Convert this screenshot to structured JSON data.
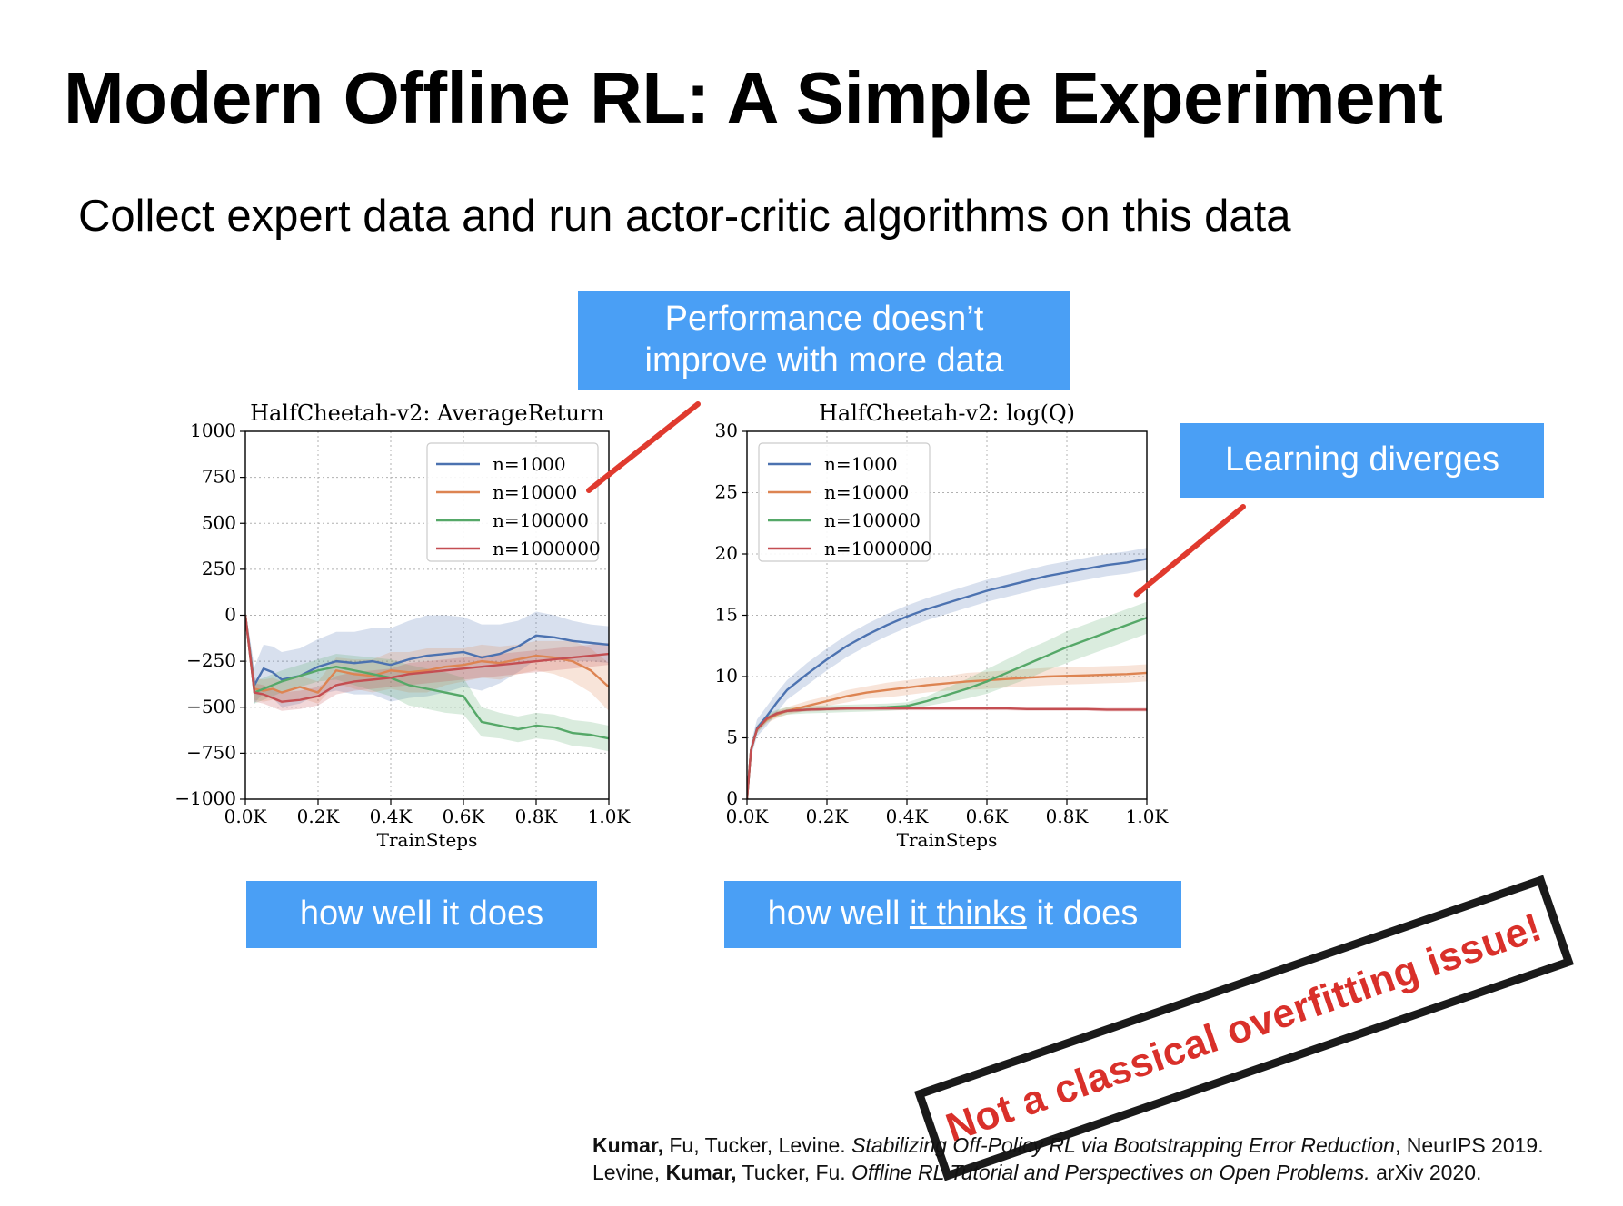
{
  "slide": {
    "title": "Modern Offline RL: A Simple Experiment",
    "subtitle": "Collect expert data and run actor-critic algorithms on this data",
    "callouts": {
      "performance": [
        "Performance doesn’t",
        "improve with more data"
      ],
      "diverges": "Learning diverges",
      "how_well": "how well it does",
      "thinks_pre": "how well ",
      "thinks_em": "it thinks",
      "thinks_post": " it does"
    },
    "stamp": "Not a classical overfitting issue!",
    "references": [
      {
        "bold": "Kumar,",
        "authors": " Fu, Tucker, Levine. ",
        "title": "Stabilizing Off-Policy RL via Bootstrapping Error Reduction",
        "venue": ", NeurIPS 2019."
      },
      {
        "pre": "Levine, ",
        "bold": "Kumar,",
        "authors": " Tucker, Fu. ",
        "title": "Offline RL Tutorial and Perspectives on Open Problems.",
        "venue": " arXiv 2020."
      }
    ],
    "colors": {
      "callout": "#4a9ff5",
      "annotation_arrow": "#e03a2e",
      "stamp_text": "#d9302a"
    }
  },
  "chart_data": [
    {
      "type": "line",
      "title": "HalfCheetah-v2: AverageReturn",
      "xlabel": "TrainSteps",
      "ylabel": "",
      "xlim": [
        0,
        1000
      ],
      "ylim": [
        -1000,
        1000
      ],
      "xticks": [
        0,
        200,
        400,
        600,
        800,
        1000
      ],
      "xtick_labels": [
        "0.0K",
        "0.2K",
        "0.4K",
        "0.6K",
        "0.8K",
        "1.0K"
      ],
      "yticks": [
        -1000,
        -750,
        -500,
        -250,
        0,
        250,
        500,
        750,
        1000
      ],
      "ytick_labels": [
        "−1000",
        "−750",
        "−500",
        "−250",
        "0",
        "250",
        "500",
        "750",
        "1000"
      ],
      "grid": true,
      "legend": "top-right",
      "x": [
        0,
        25,
        50,
        75,
        100,
        150,
        200,
        250,
        300,
        350,
        400,
        450,
        500,
        550,
        600,
        650,
        700,
        750,
        800,
        850,
        900,
        950,
        1000
      ],
      "series": [
        {
          "name": "n=1000",
          "color": "#4c72b0",
          "values": [
            0,
            -380,
            -290,
            -310,
            -350,
            -330,
            -280,
            -250,
            -260,
            -250,
            -270,
            -240,
            -220,
            -210,
            -200,
            -230,
            -210,
            -170,
            -110,
            -120,
            -140,
            -150,
            -160
          ],
          "band": [
            30,
            100,
            130,
            140,
            150,
            150,
            150,
            160,
            170,
            180,
            200,
            210,
            220,
            210,
            190,
            180,
            160,
            140,
            130,
            120,
            110,
            100,
            100
          ]
        },
        {
          "name": "n=10000",
          "color": "#dd8452",
          "values": [
            0,
            -400,
            -410,
            -400,
            -420,
            -390,
            -420,
            -300,
            -320,
            -330,
            -300,
            -310,
            -300,
            -280,
            -270,
            -250,
            -260,
            -240,
            -220,
            -230,
            -250,
            -300,
            -390
          ],
          "band": [
            30,
            60,
            60,
            60,
            60,
            60,
            60,
            70,
            80,
            90,
            100,
            110,
            120,
            100,
            90,
            90,
            90,
            80,
            80,
            90,
            110,
            120,
            130
          ]
        },
        {
          "name": "n=100000",
          "color": "#55a868",
          "values": [
            0,
            -420,
            -400,
            -380,
            -360,
            -330,
            -300,
            -280,
            -300,
            -320,
            -340,
            -380,
            -400,
            -420,
            -440,
            -580,
            -600,
            -620,
            -600,
            -610,
            -640,
            -650,
            -670
          ],
          "band": [
            30,
            60,
            60,
            60,
            60,
            60,
            60,
            70,
            80,
            90,
            100,
            110,
            110,
            110,
            100,
            80,
            70,
            70,
            70,
            70,
            70,
            70,
            70
          ]
        },
        {
          "name": "n=1000000",
          "color": "#c44e52",
          "values": [
            0,
            -420,
            -430,
            -450,
            -470,
            -460,
            -440,
            -380,
            -360,
            -350,
            -340,
            -320,
            -310,
            -300,
            -290,
            -280,
            -270,
            -260,
            -250,
            -240,
            -230,
            -220,
            -210
          ],
          "band": [
            30,
            50,
            50,
            50,
            50,
            50,
            50,
            50,
            50,
            50,
            50,
            60,
            60,
            60,
            60,
            60,
            60,
            60,
            60,
            60,
            60,
            60,
            60
          ]
        }
      ]
    },
    {
      "type": "line",
      "title": "HalfCheetah-v2: log(Q)",
      "xlabel": "TrainSteps",
      "ylabel": "",
      "xlim": [
        0,
        1000
      ],
      "ylim": [
        0,
        30
      ],
      "xticks": [
        0,
        200,
        400,
        600,
        800,
        1000
      ],
      "xtick_labels": [
        "0.0K",
        "0.2K",
        "0.4K",
        "0.6K",
        "0.8K",
        "1.0K"
      ],
      "yticks": [
        0,
        5,
        10,
        15,
        20,
        25,
        30
      ],
      "ytick_labels": [
        "0",
        "5",
        "10",
        "15",
        "20",
        "25",
        "30"
      ],
      "grid": true,
      "legend": "top-left",
      "x": [
        0,
        10,
        25,
        50,
        75,
        100,
        150,
        200,
        250,
        300,
        350,
        400,
        450,
        500,
        550,
        600,
        650,
        700,
        750,
        800,
        850,
        900,
        950,
        1000
      ],
      "series": [
        {
          "name": "n=1000",
          "color": "#4c72b0",
          "values": [
            0,
            4,
            5.8,
            6.8,
            7.9,
            8.9,
            10.2,
            11.4,
            12.5,
            13.4,
            14.2,
            14.9,
            15.5,
            16.0,
            16.5,
            17.0,
            17.4,
            17.8,
            18.2,
            18.5,
            18.8,
            19.1,
            19.3,
            19.6
          ],
          "band": [
            0.2,
            0.6,
            0.7,
            0.8,
            0.8,
            0.8,
            0.9,
            0.9,
            0.9,
            0.9,
            0.9,
            0.9,
            0.9,
            0.9,
            0.9,
            0.9,
            0.9,
            0.9,
            0.9,
            0.9,
            0.9,
            0.9,
            0.9,
            0.9
          ]
        },
        {
          "name": "n=10000",
          "color": "#dd8452",
          "values": [
            0,
            4,
            5.7,
            6.5,
            6.9,
            7.2,
            7.6,
            8.0,
            8.4,
            8.7,
            8.9,
            9.1,
            9.3,
            9.45,
            9.6,
            9.7,
            9.8,
            9.9,
            10.0,
            10.05,
            10.1,
            10.15,
            10.2,
            10.3
          ],
          "band": [
            0.2,
            0.3,
            0.3,
            0.3,
            0.3,
            0.3,
            0.4,
            0.4,
            0.5,
            0.5,
            0.6,
            0.6,
            0.6,
            0.6,
            0.7,
            0.7,
            0.7,
            0.7,
            0.7,
            0.7,
            0.7,
            0.7,
            0.7,
            0.7
          ]
        },
        {
          "name": "n=100000",
          "color": "#55a868",
          "values": [
            0,
            4,
            5.7,
            6.6,
            7.0,
            7.2,
            7.3,
            7.35,
            7.4,
            7.45,
            7.5,
            7.6,
            8.0,
            8.5,
            9.0,
            9.6,
            10.3,
            11.0,
            11.7,
            12.4,
            13.0,
            13.6,
            14.2,
            14.8
          ],
          "band": [
            0.2,
            0.3,
            0.3,
            0.3,
            0.3,
            0.3,
            0.3,
            0.3,
            0.3,
            0.3,
            0.3,
            0.3,
            0.4,
            0.6,
            0.8,
            1.0,
            1.1,
            1.2,
            1.2,
            1.3,
            1.3,
            1.3,
            1.3,
            1.3
          ]
        },
        {
          "name": "n=1000000",
          "color": "#c44e52",
          "values": [
            0,
            4,
            5.7,
            6.6,
            7.0,
            7.2,
            7.3,
            7.35,
            7.4,
            7.4,
            7.4,
            7.4,
            7.4,
            7.4,
            7.4,
            7.4,
            7.4,
            7.35,
            7.35,
            7.35,
            7.35,
            7.3,
            7.3,
            7.3
          ],
          "band": [
            0.1,
            0.15,
            0.15,
            0.15,
            0.15,
            0.15,
            0.15,
            0.15,
            0.15,
            0.15,
            0.15,
            0.15,
            0.15,
            0.15,
            0.15,
            0.15,
            0.15,
            0.15,
            0.15,
            0.15,
            0.15,
            0.15,
            0.15,
            0.15
          ]
        }
      ]
    }
  ]
}
